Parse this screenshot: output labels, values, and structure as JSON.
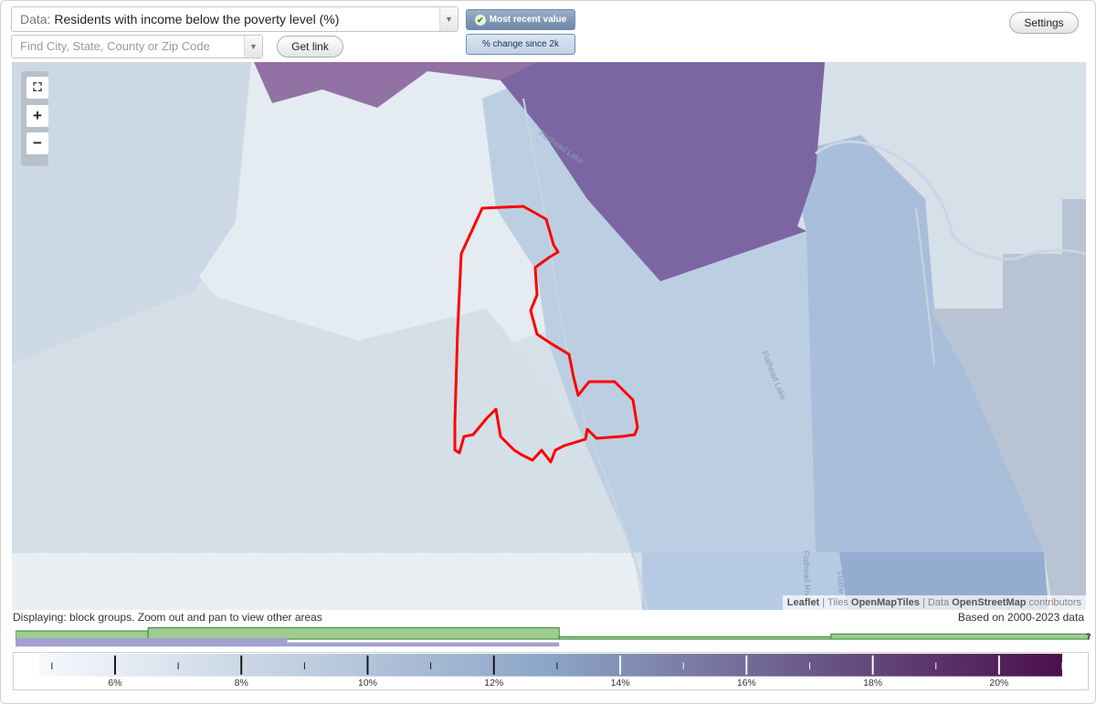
{
  "toolbar": {
    "data_prefix": "Data:",
    "data_value": "Residents with income below the poverty level (%)",
    "search_placeholder": "Find City, State, County or Zip Code",
    "get_link": "Get link",
    "mode_active": "Most recent value",
    "mode_inactive": "% change since 2k",
    "settings": "Settings"
  },
  "map": {
    "zoom_controls": [
      "fullscreen-icon",
      "plus-icon",
      "minus-icon"
    ],
    "road_labels": [
      "Flathead Lake",
      "Flathead Lake",
      "Flathead Riv",
      "Flathe"
    ],
    "attribution": {
      "leaflet": "Leaflet",
      "tiles_prefix": "| Tiles",
      "tiles": "OpenMapTiles",
      "data_prefix": "| Data",
      "data": "OpenStreetMap",
      "suffix": "contributors"
    },
    "colors": {
      "boundary": "#ff0000",
      "low": "#e4edf3",
      "high": "#814f89",
      "water": "#aec2da"
    }
  },
  "status": {
    "displaying": "Displaying: block groups. Zoom out and pan to view other areas",
    "based_on": "Based on 2000-2023 data",
    "help": "?"
  },
  "legend": {
    "min": 4.8,
    "max": 21,
    "ticks": [
      6,
      8,
      10,
      12,
      14,
      16,
      18,
      20
    ],
    "labels": [
      "6%",
      "8%",
      "10%",
      "12%",
      "14%",
      "16%",
      "18%",
      "20%"
    ],
    "start_color": "#f6f9fc",
    "mid_color": "#8ca5c6",
    "end_color": "#4a0f4c"
  },
  "histogram": {
    "series": [
      {
        "color": "#9fcb92",
        "segments": [
          [
            4.8,
            6.8,
            0.5
          ],
          [
            6.8,
            13.0,
            0.7
          ],
          [
            13.0,
            17.1,
            0.15
          ],
          [
            17.1,
            21.0,
            0.32
          ]
        ]
      },
      {
        "color": "#a39fcf",
        "segments": [
          [
            4.8,
            8.9,
            0.5
          ],
          [
            8.9,
            13.0,
            0.25
          ]
        ]
      }
    ]
  }
}
